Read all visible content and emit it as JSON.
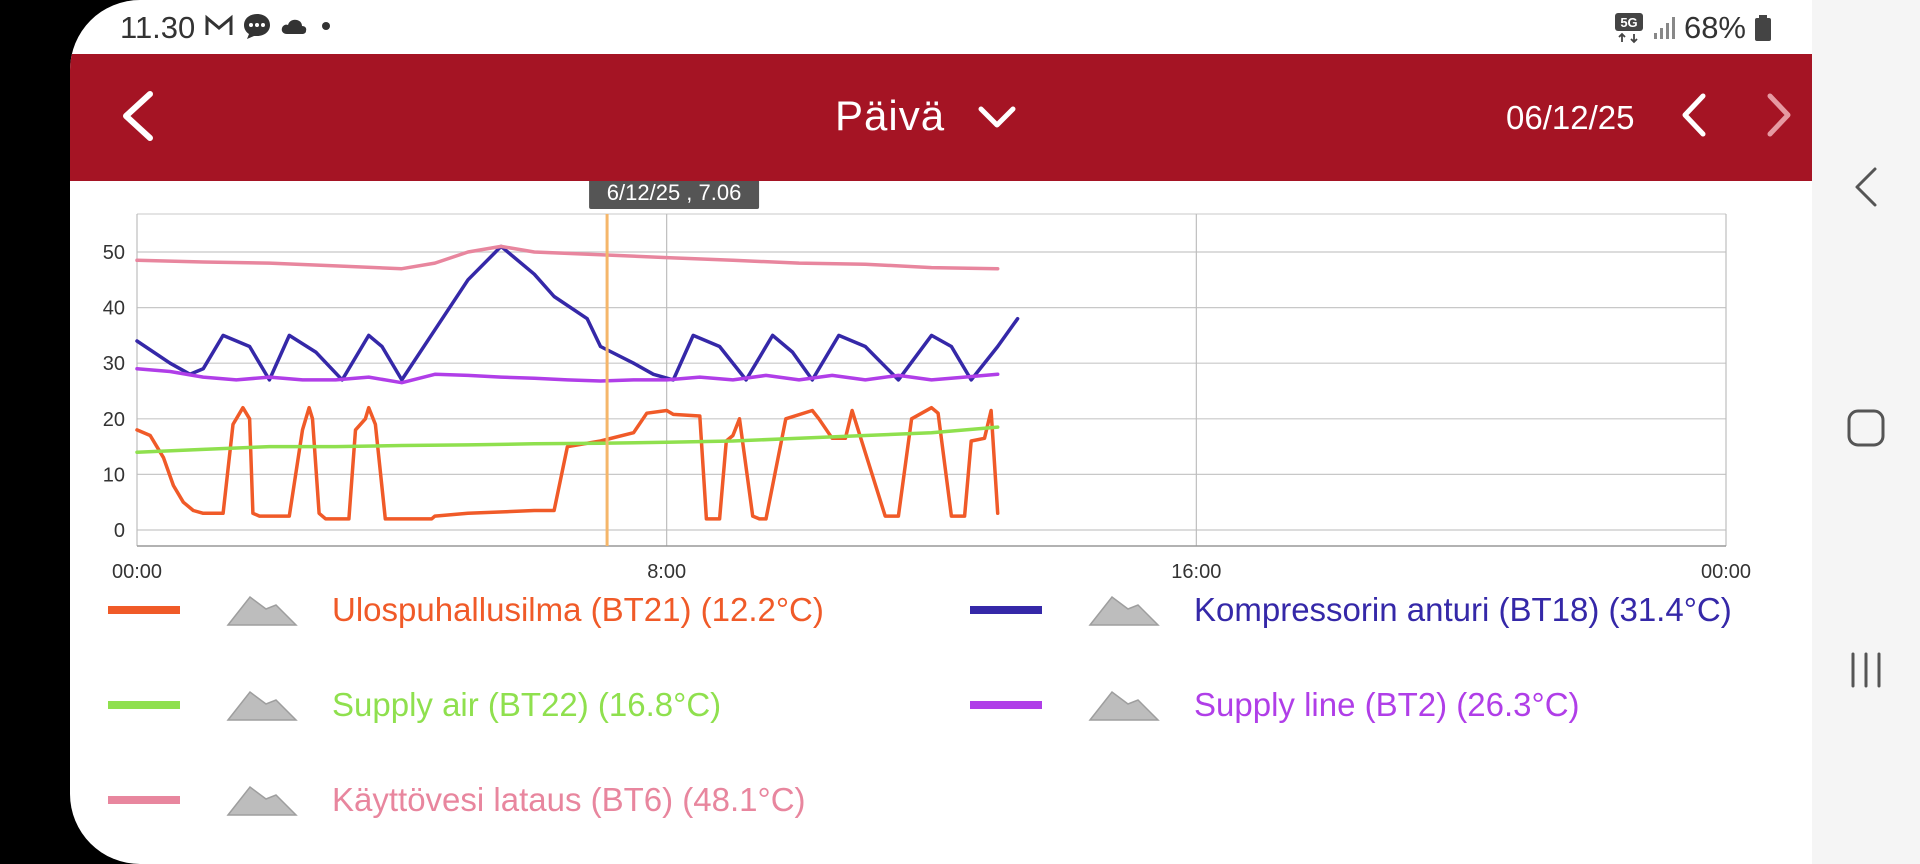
{
  "status": {
    "time": "11.30",
    "battery": "68%",
    "network": "5G"
  },
  "header": {
    "title": "Päivä",
    "date": "06/12/25",
    "color": "#a51424"
  },
  "chart_data": {
    "type": "line",
    "cursor_label": "6/12/25 , 7.06",
    "cursor_x": 7.1,
    "ylim": [
      0,
      55
    ],
    "xlim": [
      0,
      24
    ],
    "yticks": [
      "0",
      "10",
      "20",
      "30",
      "40",
      "50"
    ],
    "ytick_values": [
      0,
      10,
      20,
      30,
      40,
      50
    ],
    "xticks": [
      "00:00",
      "8:00",
      "16:00",
      "00:00"
    ],
    "xtick_values": [
      0,
      8,
      16,
      24
    ],
    "grid": true,
    "series": [
      {
        "name": "Ulospuhallusilma (BT21) (12.2°C)",
        "color": "#f05a28",
        "x": [
          0,
          0.2,
          0.4,
          0.55,
          0.7,
          0.85,
          1.0,
          1.15,
          1.3,
          1.45,
          1.6,
          1.7,
          1.75,
          1.85,
          2.0,
          2.3,
          2.5,
          2.6,
          2.65,
          2.75,
          2.85,
          3.2,
          3.3,
          3.45,
          3.5,
          3.6,
          3.75,
          4.0,
          4.2,
          4.35,
          4.45,
          4.5,
          5.0,
          6.0,
          6.3,
          6.5,
          7.0,
          7.5,
          7.7,
          8.0,
          8.1,
          8.5,
          8.6,
          8.8,
          8.9,
          9.0,
          9.1,
          9.3,
          9.4,
          9.5,
          9.8,
          10.2,
          10.3,
          10.5,
          10.7,
          10.8,
          11.3,
          11.5,
          11.7,
          12.0,
          12.1,
          12.3,
          12.5,
          12.6,
          12.8,
          12.9,
          13.0
        ],
        "y": [
          18,
          17,
          13,
          8,
          5,
          3.5,
          3,
          3,
          3,
          19,
          22,
          20,
          3,
          2.5,
          2.5,
          2.5,
          18,
          22,
          20,
          3,
          2,
          2,
          18,
          20,
          22,
          19,
          2,
          2,
          2,
          2,
          2,
          2.5,
          3,
          3.5,
          3.5,
          15,
          16,
          17.5,
          21,
          21.5,
          20.8,
          20.5,
          2,
          2,
          16,
          17,
          20,
          2.5,
          2,
          2,
          20,
          21.5,
          20,
          16.5,
          16.5,
          21.5,
          2.5,
          2.5,
          20,
          22,
          21,
          2.5,
          2.5,
          16,
          16.5,
          21.5,
          3
        ]
      },
      {
        "name": "Kompressorin anturi (BT18) (31.4°C)",
        "color": "#3528a8",
        "x": [
          0,
          0.5,
          0.8,
          1.0,
          1.3,
          1.7,
          2.0,
          2.3,
          2.7,
          3.1,
          3.5,
          3.7,
          4.0,
          4.5,
          5.0,
          5.5,
          6.0,
          6.3,
          6.8,
          7.0,
          7.5,
          7.8,
          8.1,
          8.4,
          8.8,
          9.2,
          9.6,
          9.9,
          10.2,
          10.6,
          11.0,
          11.5,
          12.0,
          12.3,
          12.6,
          13.0,
          13.3
        ],
        "y": [
          34,
          30,
          28,
          29,
          35,
          33,
          27,
          35,
          32,
          27,
          35,
          33,
          27,
          36,
          45,
          51,
          46,
          42,
          38,
          33,
          30,
          28,
          27,
          35,
          33,
          27,
          35,
          32,
          27,
          35,
          33,
          27,
          35,
          33,
          27,
          33,
          38
        ]
      },
      {
        "name": "Supply air (BT22) (16.8°C)",
        "color": "#8fe04e",
        "x": [
          0,
          1,
          2,
          3,
          4,
          5,
          6,
          7,
          8,
          9,
          10,
          11,
          12,
          13
        ],
        "y": [
          14,
          14.5,
          15,
          15,
          15.2,
          15.3,
          15.5,
          15.6,
          15.8,
          16,
          16.5,
          17,
          17.5,
          18.5
        ]
      },
      {
        "name": "Supply line (BT2) (26.3°C)",
        "color": "#b03ee8",
        "x": [
          0,
          0.5,
          1,
          1.5,
          2,
          2.5,
          3,
          3.5,
          4,
          4.5,
          5,
          5.5,
          6,
          6.5,
          7,
          7.5,
          8,
          8.5,
          9,
          9.5,
          10,
          10.5,
          11,
          11.5,
          12,
          12.5,
          13
        ],
        "y": [
          29,
          28.5,
          27.5,
          27,
          27.5,
          27,
          27,
          27.5,
          26.5,
          28,
          27.8,
          27.5,
          27.3,
          27,
          26.8,
          27,
          27,
          27.5,
          27,
          27.8,
          27,
          27.8,
          27,
          27.8,
          27,
          27.5,
          28
        ]
      },
      {
        "name": "Käyttövesi lataus (BT6) (48.1°C)",
        "color": "#e8869e",
        "x": [
          0,
          1,
          2,
          3,
          4,
          4.5,
          5,
          5.5,
          6,
          7,
          8,
          9,
          10,
          11,
          12,
          13
        ],
        "y": [
          48.5,
          48.2,
          48,
          47.5,
          47,
          48,
          50,
          51,
          50,
          49.5,
          49,
          48.5,
          48,
          47.8,
          47.2,
          47
        ]
      }
    ]
  },
  "legend": [
    {
      "label": "Ulospuhallusilma (BT21) (12.2°C)",
      "color": "#f05a28"
    },
    {
      "label": "Kompressorin anturi (BT18) (31.4°C)",
      "color": "#3528a8"
    },
    {
      "label": "Supply air (BT22) (16.8°C)",
      "color": "#8fe04e"
    },
    {
      "label": "Supply line (BT2) (26.3°C)",
      "color": "#b03ee8"
    },
    {
      "label": "Käyttövesi lataus (BT6) (48.1°C)",
      "color": "#e8869e"
    }
  ]
}
